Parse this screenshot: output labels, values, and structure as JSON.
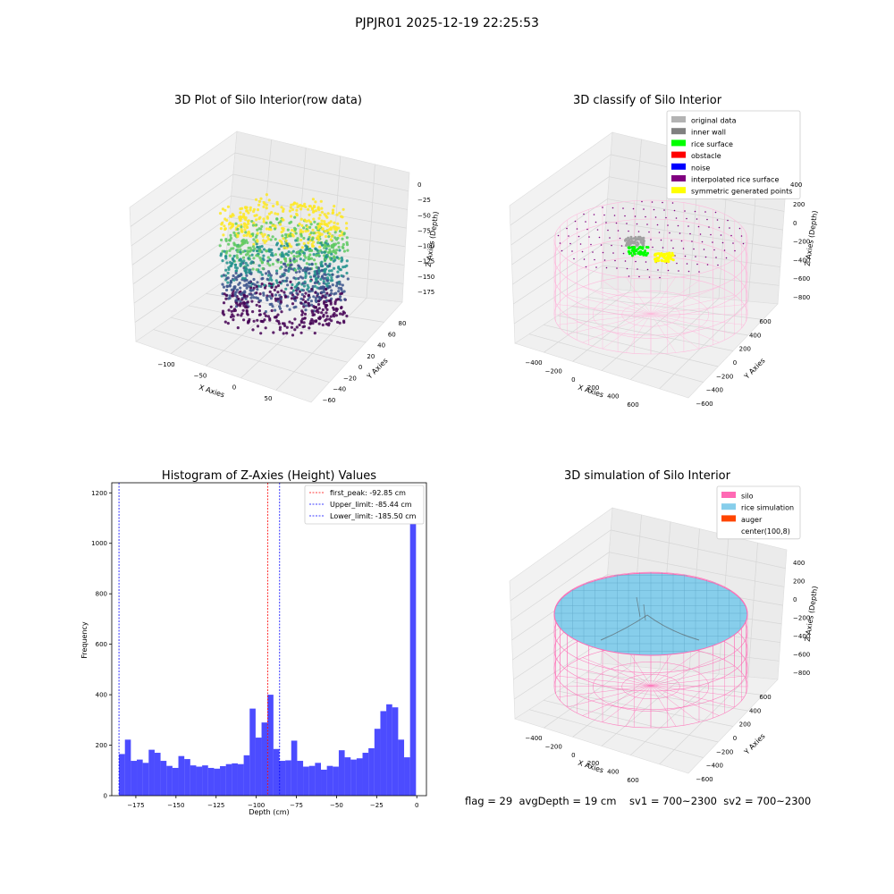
{
  "figure": {
    "suptitle": "PJPJR01 2025-12-19 22:25:53",
    "status_line": "flag = 29  avgDepth = 19 cm    sv1 = 700~2300  sv2 = 700~2300"
  },
  "chart_data": [
    {
      "type": "scatter",
      "title": "3D Plot of Silo Interior(row data)",
      "xlabel": "X Axies",
      "ylabel": "Y Axies",
      "zlabel": "Z Axies (Depth)",
      "x_ticks": [
        "−100",
        "−50",
        "0",
        "50"
      ],
      "y_ticks": [
        "−60",
        "−40",
        "−20",
        "0",
        "20",
        "40",
        "60",
        "80"
      ],
      "z_ticks": [
        "0",
        "−25",
        "−50",
        "−75",
        "−100",
        "−125",
        "−150",
        "−175"
      ],
      "colormap": "viridis",
      "grid": true
    },
    {
      "type": "scatter",
      "title": "3D classify of Silo Interior",
      "xlabel": "X Axies",
      "ylabel": "Y Axies",
      "zlabel": "Z Axies (Depth)",
      "x_ticks": [
        "−400",
        "−200",
        "0",
        "200",
        "400",
        "600"
      ],
      "y_ticks": [
        "−600",
        "−400",
        "−200",
        "0",
        "200",
        "400",
        "600"
      ],
      "z_ticks": [
        "200",
        "0",
        "−200",
        "−400",
        "−600",
        "−800"
      ],
      "z_ticks_extra": [
        "400"
      ],
      "legend_placement": "top-right",
      "legend": [
        {
          "label": "original data",
          "color": "#b3b3b3"
        },
        {
          "label": "inner wall",
          "color": "#808080"
        },
        {
          "label": "rice surface",
          "color": "#00ff00"
        },
        {
          "label": "obstacle",
          "color": "#ff0000"
        },
        {
          "label": "noise",
          "color": "#0000ff"
        },
        {
          "label": "interpolated rice surface",
          "color": "#800080"
        },
        {
          "label": "symmetric generated points",
          "color": "#ffff00"
        }
      ],
      "grid": true
    },
    {
      "type": "bar",
      "title": "Histogram of Z-Axies (Height) Values",
      "xlabel": "Depth (cm)",
      "ylabel": "Frequency",
      "xlim": [
        -190,
        6
      ],
      "ylim": [
        0,
        1240
      ],
      "x_ticks": [
        -175,
        -150,
        -125,
        -100,
        -75,
        -50,
        -25,
        0
      ],
      "y_ticks": [
        0,
        200,
        400,
        600,
        800,
        1000,
        1200
      ],
      "bin_start": -185.5,
      "bin_width": 3.7,
      "values": [
        165,
        222,
        138,
        143,
        130,
        182,
        170,
        138,
        118,
        110,
        157,
        145,
        120,
        115,
        120,
        110,
        107,
        117,
        125,
        128,
        125,
        160,
        345,
        230,
        290,
        400,
        185,
        138,
        140,
        218,
        138,
        115,
        118,
        130,
        103,
        118,
        115,
        180,
        152,
        143,
        148,
        170,
        188,
        265,
        335,
        362,
        350,
        222,
        152,
        1200
      ],
      "bar_color": "#0000ff",
      "reference_lines": [
        {
          "label": "first_peak: -92.85 cm",
          "value": -92.85,
          "color": "#ff0000"
        },
        {
          "label": "Upper_limit: -85.44 cm",
          "value": -85.44,
          "color": "#0000ff"
        },
        {
          "label": "Lower_limit: -185.50 cm",
          "value": -185.5,
          "color": "#0000ff"
        }
      ],
      "legend_placement": "top-right"
    },
    {
      "type": "scatter",
      "title": "3D simulation of Silo Interior",
      "xlabel": "X Axies",
      "ylabel": "Y Axies",
      "zlabel": "Z Axies (Depth)",
      "x_ticks": [
        "−400",
        "−200",
        "0",
        "200",
        "400",
        "600"
      ],
      "y_ticks": [
        "−600",
        "−400",
        "−200",
        "0",
        "200",
        "400",
        "600"
      ],
      "z_ticks": [
        "400",
        "200",
        "0",
        "−200",
        "−400",
        "−600",
        "−800"
      ],
      "legend_placement": "top-right",
      "legend": [
        {
          "label": "silo",
          "color": "#ff69b4"
        },
        {
          "label": "rice simulation",
          "color": "#87ceeb"
        },
        {
          "label": "auger",
          "color": "#ff4500"
        },
        {
          "label": "center(100,8)",
          "color": "#ffffff"
        }
      ],
      "grid": true
    }
  ]
}
